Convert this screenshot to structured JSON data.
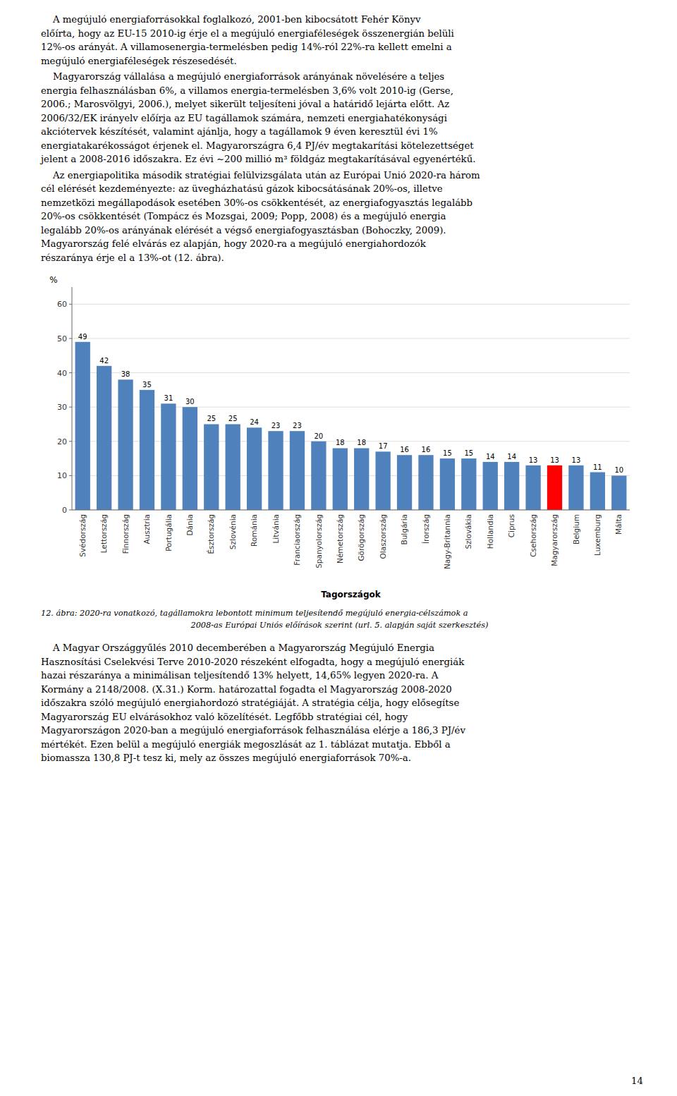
{
  "paragraphs_before": [
    [
      "    A megújuló energiaforrásokkal foglalkozó, 2001-ben kibocsátott Fehér Könyv",
      "előírta, hogy az EU-15 2010-ig érje el a megújuló energiaféleségek összenergián belüli",
      "12%-os arányát. A villamosenergia-termelésben pedig 14%-ról 22%-ra kellett emelni a",
      "megújuló energiaféleségek részesedését."
    ],
    [
      "    Magyarország vállalása a megújuló energiaforrások arányának növelésére a teljes",
      "energia felhasználásban 6%, a villamos energia-termelésben 3,6% volt 2010-ig (Gerse,",
      "2006.; Marosvölgyi, 2006.), melyet sikerült teljesíteni jóval a határidő lejárta előtt. Az",
      "2006/32/EK irányelv előírja az EU tagállamok számára, nemzeti energiahatékonysági",
      "akciótervek készítését, valamint ajánlja, hogy a tagállamok 9 éven keresztül évi 1%",
      "energiatakarékosságot érjenek el. Magyarországra 6,4 PJ/év megtakarítási kötelezettséget",
      "jelent a 2008-2016 időszakra. Ez évi ~200 millió m³ földgáz megtakarításával egyenértékű."
    ],
    [
      "    Az energiapolitika második stratégiai felülvizsgálata után az Európai Unió 2020-ra három",
      "cél elérését kezdeményezte: az üvegházhatású gázok kibocsátásának 20%-os, illetve",
      "nemzetközi megállapodások esetében 30%-os csökkentését, az energiafogyasztás legalább",
      "20%-os csökkentését (Tompácz és Mozsgai, 2009; Popp, 2008) és a megújuló energia",
      "legalább 20%-os arányának elérését a végső energiafogyasztásban (Bohoczky, 2009).",
      "Magyarország felé elvárás ez alapján, hogy 2020-ra a megújuló energiahordozók",
      "részaránya érje el a 13%-ot (12. ábra)."
    ]
  ],
  "caption": [
    "12. ábra: 2020-ra vonatkozó, tagállamokra lebontott minimum teljesítendő megújuló energia-célszámok a",
    "2008-as Európai Uniós előírások szerint (url. 5. alapján saját szerkesztés)"
  ],
  "paragraphs_after": [
    [
      "    A Magyar Országgyűlés 2010 decemberében a Magyarország Megújuló Energia",
      "Hasznosítási Cselekvési Terve 2010-2020 részeként elfogadta, hogy a megújuló energiák",
      "hazai részaránya a minimálisan teljesítendő 13% helyett, 14,65% legyen 2020-ra. A",
      "Kormány a 2148/2008. (X.31.) Korm. határozattal fogadta el Magyarország 2008-2020",
      "időszakra szóló megújuló energiahordozó stratégiáját. A stratégia célja, hogy elősegítse",
      "Magyarország EU elvárásokhoz való közelítését. Legfőbb stratégiai cél, hogy",
      "Magyarországon 2020-ban a megújuló energiaforrások felhasználása elérje a 186,3 PJ/év",
      "mértékét. Ezen belül a megújuló energiák megoszlását az 1. táblázat mutatja. Ebből a",
      "biomassza 130,8 PJ-t tesz ki, mely az összes megújuló energiaforrások 70%-a."
    ]
  ],
  "page_number": "14",
  "chart_data": {
    "type": "bar",
    "categories": [
      "Svédország",
      "Lettország",
      "Finnország",
      "Ausztria",
      "Portugália",
      "Dánia",
      "Észtország",
      "Szlovénia",
      "Románia",
      "Litvánia",
      "Franciaország",
      "Spanyolország",
      "Németország",
      "Görögország",
      "Olaszország",
      "Bulgária",
      "Írország",
      "Nagy-Britannia",
      "Szlovákia",
      "Hollandia",
      "Ciprus",
      "Csehország",
      "Magyarország",
      "Belgium",
      "Luxemburg",
      "Málta"
    ],
    "values": [
      49,
      42,
      38,
      35,
      31,
      30,
      25,
      25,
      24,
      23,
      23,
      20,
      18,
      18,
      17,
      16,
      16,
      15,
      15,
      14,
      14,
      13,
      13,
      13,
      11,
      10
    ],
    "colors": [
      "#4f81bd",
      "#4f81bd",
      "#4f81bd",
      "#4f81bd",
      "#4f81bd",
      "#4f81bd",
      "#4f81bd",
      "#4f81bd",
      "#4f81bd",
      "#4f81bd",
      "#4f81bd",
      "#4f81bd",
      "#4f81bd",
      "#4f81bd",
      "#4f81bd",
      "#4f81bd",
      "#4f81bd",
      "#4f81bd",
      "#4f81bd",
      "#4f81bd",
      "#4f81bd",
      "#4f81bd",
      "#ff0000",
      "#4f81bd",
      "#4f81bd",
      "#4f81bd"
    ],
    "x_label": "Tagországok",
    "y_label": "%",
    "ylim": [
      0,
      65
    ],
    "yticks": [
      0,
      10,
      20,
      30,
      40,
      50,
      60
    ],
    "grid": true,
    "data_labels": true
  }
}
